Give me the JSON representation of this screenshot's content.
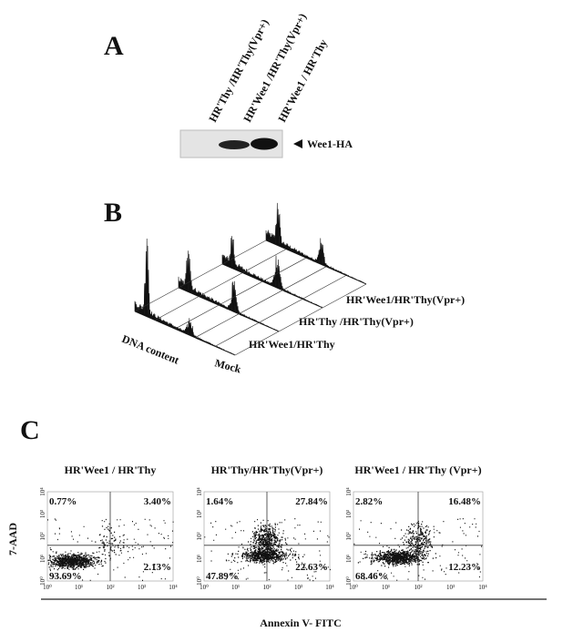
{
  "panel_a": {
    "label": "A",
    "lanes": [
      "HR'Thy /HR'Thy(Vpr+)",
      "HR'Wee1 /HR'Thy(Vpr+)",
      "HR'Wee1 / HR'Thy"
    ],
    "band_label": "Wee1-HA"
  },
  "panel_b": {
    "label": "B",
    "axis_label": "DNA content",
    "samples": [
      "Mock",
      "HR'Wee1/HR'Thy",
      "HR'Thy /HR'Thy(Vpr+)",
      "HR'Wee1/HR'Thy(Vpr+)"
    ]
  },
  "panel_c": {
    "label": "C",
    "y_label": "7-AAD",
    "x_label": "Annexin V- FITC",
    "axis_ticks": [
      "10⁰",
      "10¹",
      "10²",
      "10³",
      "10⁴"
    ],
    "plots": [
      {
        "title": "HR'Wee1 / HR'Thy",
        "upper_left": "0.77%",
        "upper_right": "3.40%",
        "lower_left": "93.69%",
        "lower_right": "2.13%"
      },
      {
        "title": "HR'Thy/HR'Thy(Vpr+)",
        "upper_left": "1.64%",
        "upper_right": "27.84%",
        "lower_left": "47.89%",
        "lower_right": "22.63%"
      },
      {
        "title": "HR'Wee1 / HR'Thy (Vpr+)",
        "upper_left": "2.82%",
        "upper_right": "16.48%",
        "lower_left": "68.46%",
        "lower_right": "12.23%"
      }
    ]
  }
}
